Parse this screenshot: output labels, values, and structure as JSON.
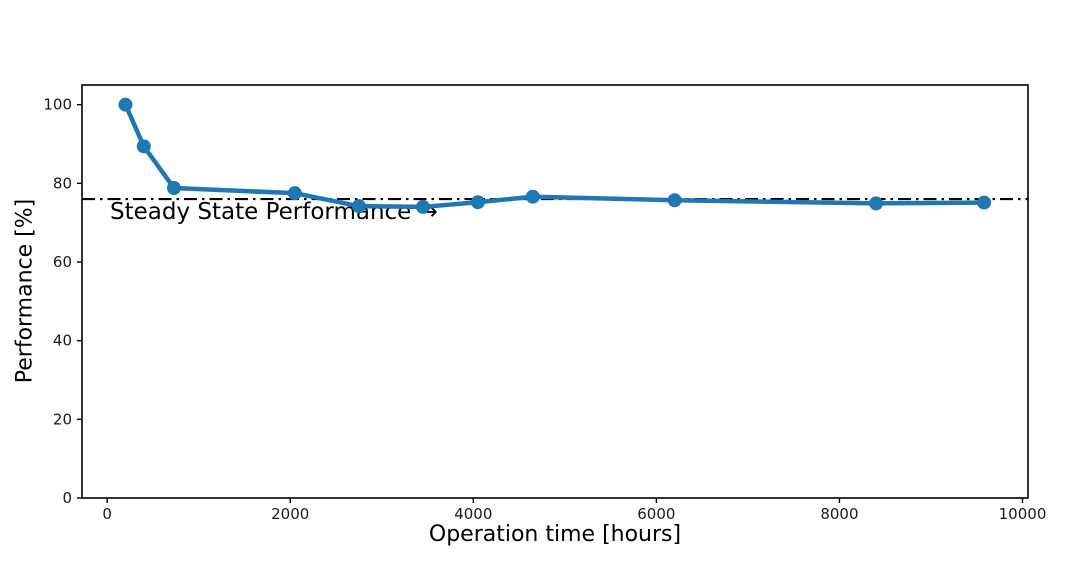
{
  "chart_data": {
    "type": "line",
    "title": "",
    "xlabel": "Operation time [hours]",
    "ylabel": "Performance [%]",
    "xlim": [
      -275,
      10060
    ],
    "ylim": [
      0,
      105
    ],
    "xticks": [
      0,
      2000,
      4000,
      6000,
      8000,
      10000
    ],
    "xtick_labels": [
      "0",
      "2000",
      "4000",
      "6000",
      "8000",
      "10000"
    ],
    "yticks": [
      0,
      20,
      40,
      60,
      80,
      100
    ],
    "ytick_labels": [
      "0",
      "20",
      "40",
      "60",
      "80",
      "100"
    ],
    "grid": false,
    "legend_position": "none",
    "series": [
      {
        "name": "performance",
        "color": "#1f77b4",
        "marker": "circle",
        "x": [
          200,
          400,
          730,
          2050,
          2750,
          3450,
          4050,
          4650,
          6200,
          8400,
          9580
        ],
        "y": [
          100,
          89.4,
          78.8,
          77.5,
          74.2,
          74.0,
          75.2,
          76.6,
          75.7,
          74.9,
          75.1
        ]
      }
    ],
    "reference_line": {
      "y": 76,
      "style": "dashdot",
      "color": "#000000",
      "label": "Steady State Performance →"
    },
    "colors": {
      "axis": "#000000",
      "tick_text": "#1a1a1a",
      "background": "#ffffff"
    }
  }
}
